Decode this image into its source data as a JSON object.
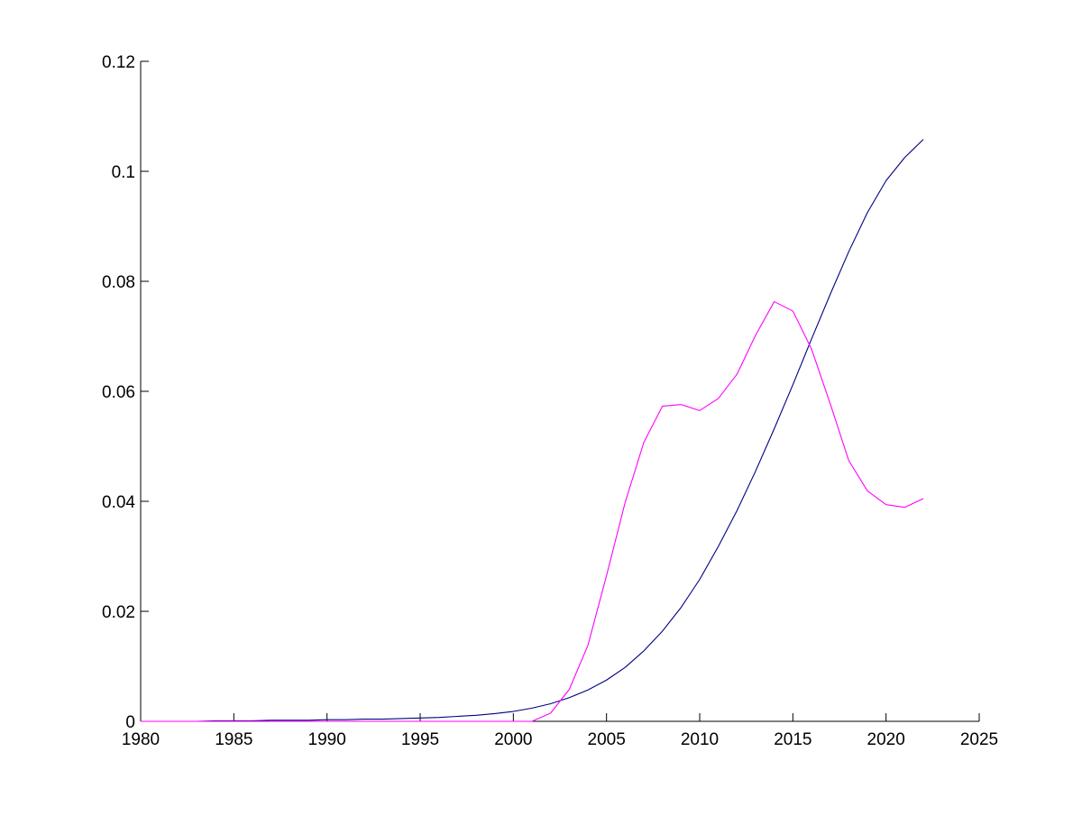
{
  "chart_data": {
    "type": "line",
    "title": "",
    "xlabel": "",
    "ylabel": "",
    "xlim": [
      1980,
      2025
    ],
    "ylim": [
      0,
      0.12
    ],
    "x_ticks": [
      1980,
      1985,
      1990,
      1995,
      2000,
      2005,
      2010,
      2015,
      2020,
      2025
    ],
    "x_tick_labels": [
      "1980",
      "1985",
      "1990",
      "1995",
      "2000",
      "2005",
      "2010",
      "2015",
      "2020",
      "2025"
    ],
    "y_ticks": [
      0,
      0.02,
      0.04,
      0.06,
      0.08,
      0.1,
      0.12
    ],
    "y_tick_labels": [
      "0",
      "0.02",
      "0.04",
      "0.06",
      "0.08",
      "0.1",
      "0.12"
    ],
    "grid": false,
    "legend": "none",
    "x": [
      1980,
      1981,
      1982,
      1983,
      1984,
      1985,
      1986,
      1987,
      1988,
      1989,
      1990,
      1991,
      1992,
      1993,
      1994,
      1995,
      1996,
      1997,
      1998,
      1999,
      2000,
      2001,
      2002,
      2003,
      2004,
      2005,
      2006,
      2007,
      2008,
      2009,
      2010,
      2011,
      2012,
      2013,
      2014,
      2015,
      2016,
      2017,
      2018,
      2019,
      2020,
      2021,
      2022
    ],
    "series": [
      {
        "color": "#00007f",
        "values": [
          0.0,
          0.0,
          0.0,
          0.0,
          0.0001,
          0.0001,
          0.0001,
          0.0002,
          0.0002,
          0.0002,
          0.0003,
          0.0003,
          0.0004,
          0.0004,
          0.0005,
          0.0006,
          0.0007,
          0.0009,
          0.0011,
          0.0014,
          0.0018,
          0.0024,
          0.0032,
          0.0043,
          0.0057,
          0.0075,
          0.0098,
          0.0128,
          0.0164,
          0.0207,
          0.0258,
          0.0318,
          0.0383,
          0.0455,
          0.0532,
          0.0612,
          0.0695,
          0.0776,
          0.0854,
          0.0925,
          0.0983,
          0.1025,
          0.1058
        ]
      },
      {
        "color": "#ff00ff",
        "values": [
          0.0,
          0.0,
          0.0,
          0.0,
          0.0,
          0.0,
          0.0,
          0.0,
          0.0,
          0.0,
          0.0,
          0.0,
          0.0,
          0.0,
          0.0,
          0.0,
          0.0,
          0.0,
          0.0,
          0.0,
          0.0,
          0.0,
          0.0015,
          0.0058,
          0.0138,
          0.0265,
          0.0398,
          0.0507,
          0.0573,
          0.0576,
          0.0565,
          0.0587,
          0.0631,
          0.0702,
          0.0763,
          0.0746,
          0.0677,
          0.0578,
          0.0474,
          0.0419,
          0.0394,
          0.0389,
          0.0405
        ]
      }
    ]
  }
}
